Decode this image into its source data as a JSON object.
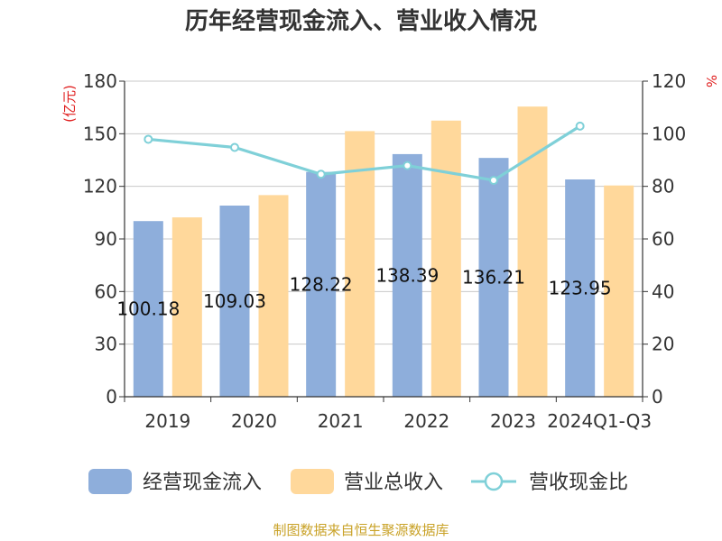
{
  "chart_data": {
    "type": "bar",
    "title": "历年经营现金流入、营业收入情况",
    "categories": [
      "2019",
      "2020",
      "2021",
      "2022",
      "2023",
      "2024Q1-Q3"
    ],
    "series": [
      {
        "name": "经营现金流入",
        "type": "bar",
        "axis": "left",
        "color": "#8eaedb",
        "values": [
          100.18,
          109.03,
          128.22,
          138.39,
          136.21,
          123.95
        ],
        "labels": [
          "100.18",
          "109.03",
          "128.22",
          "138.39",
          "136.21",
          "123.95"
        ]
      },
      {
        "name": "营业总收入",
        "type": "bar",
        "axis": "right_scaled",
        "color": "#ffd89b",
        "values": [
          102.3,
          115.0,
          151.5,
          157.5,
          165.5,
          120.5
        ]
      },
      {
        "name": "营收现金比",
        "type": "line",
        "axis": "right",
        "color": "#7fd0d8",
        "values": [
          97.9,
          94.8,
          84.6,
          87.9,
          82.3,
          102.9
        ]
      }
    ],
    "yleft": {
      "unit": "(亿元)",
      "min": 0,
      "max": 180,
      "ticks": [
        0,
        30,
        60,
        90,
        120,
        150,
        180
      ]
    },
    "yright": {
      "unit": "%",
      "min": 0,
      "max": 120,
      "ticks": [
        0,
        20,
        40,
        60,
        80,
        100,
        120
      ]
    },
    "grid": true,
    "legend_position": "bottom"
  },
  "source": "制图数据来自恒生聚源数据库"
}
